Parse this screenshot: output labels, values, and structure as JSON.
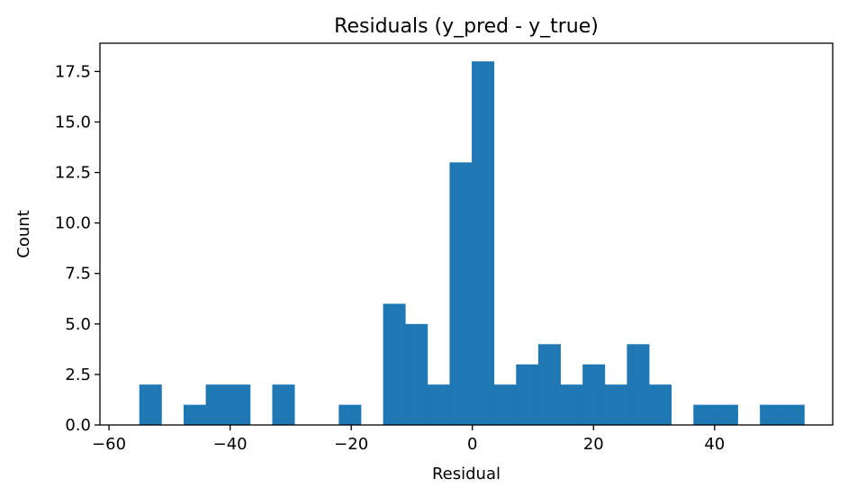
{
  "chart_data": {
    "type": "bar",
    "title": "Residuals (y_pred - y_true)",
    "xlabel": "Residual",
    "ylabel": "Count",
    "xlim": [
      -61.5,
      59.5
    ],
    "ylim": [
      0,
      18.9
    ],
    "bin_width": 3.66,
    "bins": [
      {
        "start": -55.0,
        "end": -51.34,
        "count": 2
      },
      {
        "start": -51.34,
        "end": -47.68,
        "count": 0
      },
      {
        "start": -47.68,
        "end": -44.02,
        "count": 1
      },
      {
        "start": -44.02,
        "end": -40.36,
        "count": 2
      },
      {
        "start": -40.36,
        "end": -36.7,
        "count": 2
      },
      {
        "start": -36.7,
        "end": -33.04,
        "count": 0
      },
      {
        "start": -33.04,
        "end": -29.38,
        "count": 2
      },
      {
        "start": -29.38,
        "end": -25.72,
        "count": 0
      },
      {
        "start": -25.72,
        "end": -22.06,
        "count": 0
      },
      {
        "start": -22.06,
        "end": -18.4,
        "count": 1
      },
      {
        "start": -18.4,
        "end": -14.74,
        "count": 0
      },
      {
        "start": -14.74,
        "end": -11.08,
        "count": 6
      },
      {
        "start": -11.08,
        "end": -7.42,
        "count": 5
      },
      {
        "start": -7.42,
        "end": -3.76,
        "count": 2
      },
      {
        "start": -3.76,
        "end": -0.1,
        "count": 13
      },
      {
        "start": -0.1,
        "end": 3.56,
        "count": 18
      },
      {
        "start": 3.56,
        "end": 7.22,
        "count": 2
      },
      {
        "start": 7.22,
        "end": 10.88,
        "count": 3
      },
      {
        "start": 10.88,
        "end": 14.54,
        "count": 4
      },
      {
        "start": 14.54,
        "end": 18.2,
        "count": 2
      },
      {
        "start": 18.2,
        "end": 21.86,
        "count": 3
      },
      {
        "start": 21.86,
        "end": 25.52,
        "count": 2
      },
      {
        "start": 25.52,
        "end": 29.18,
        "count": 4
      },
      {
        "start": 29.18,
        "end": 32.84,
        "count": 2
      },
      {
        "start": 32.84,
        "end": 36.5,
        "count": 0
      },
      {
        "start": 36.5,
        "end": 40.16,
        "count": 1
      },
      {
        "start": 40.16,
        "end": 43.82,
        "count": 1
      },
      {
        "start": 43.82,
        "end": 47.48,
        "count": 0
      },
      {
        "start": 47.48,
        "end": 51.14,
        "count": 1
      },
      {
        "start": 51.14,
        "end": 54.8,
        "count": 1
      }
    ],
    "x_ticks": [
      {
        "value": -60,
        "label": "−60"
      },
      {
        "value": -40,
        "label": "−40"
      },
      {
        "value": -20,
        "label": "−20"
      },
      {
        "value": 0,
        "label": "0"
      },
      {
        "value": 20,
        "label": "20"
      },
      {
        "value": 40,
        "label": "40"
      }
    ],
    "y_ticks": [
      {
        "value": 0,
        "label": "0.0"
      },
      {
        "value": 2.5,
        "label": "2.5"
      },
      {
        "value": 5,
        "label": "5.0"
      },
      {
        "value": 7.5,
        "label": "7.5"
      },
      {
        "value": 10,
        "label": "10.0"
      },
      {
        "value": 12.5,
        "label": "12.5"
      },
      {
        "value": 15,
        "label": "15.0"
      },
      {
        "value": 17.5,
        "label": "17.5"
      }
    ],
    "grid": false,
    "bar_color": "#1f77b4"
  }
}
